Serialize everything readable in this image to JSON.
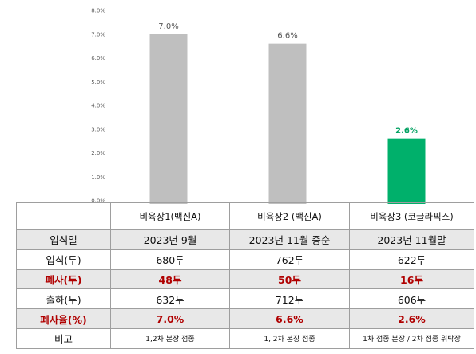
{
  "chart_data": {
    "type": "bar",
    "categories": [
      "비육장1(백신A)",
      "비육장2 (백신A)",
      "비육장3 (코글라픽스)"
    ],
    "values": [
      7.0,
      6.6,
      2.6
    ],
    "value_labels": [
      "7.0%",
      "6.6%",
      "2.6%"
    ],
    "bar_colors": [
      "#bfbfbf",
      "#bfbfbf",
      "#00b06b"
    ],
    "value_label_colors": [
      "#595959",
      "#595959",
      "#00a060"
    ],
    "ylim": [
      0,
      8
    ],
    "yticks": [
      0,
      1,
      2,
      3,
      4,
      5,
      6,
      7,
      8
    ],
    "ytick_labels": [
      "0.0%",
      "1.0%",
      "2.0%",
      "3.0%",
      "4.0%",
      "5.0%",
      "6.0%",
      "7.0%",
      "8.0%"
    ],
    "grid": false,
    "title": "",
    "xlabel": "",
    "ylabel": ""
  },
  "table": {
    "header": [
      "",
      "비육장1(백신A)",
      "비육장2 (백신A)",
      "비육장3 (코글라픽스)"
    ],
    "rows": [
      {
        "label": "입식일",
        "cells": [
          "2023년 9월",
          "2023년 11월 중순",
          "2023년 11월말"
        ],
        "style": "shade"
      },
      {
        "label": "입식(두)",
        "cells": [
          "680두",
          "762두",
          "622두"
        ],
        "style": "plain"
      },
      {
        "label": "폐사(두)",
        "cells": [
          "48두",
          "50두",
          "16두"
        ],
        "style": "shade red"
      },
      {
        "label": "출하(두)",
        "cells": [
          "632두",
          "712두",
          "606두"
        ],
        "style": "plain"
      },
      {
        "label": "폐사율(%)",
        "cells": [
          "7.0%",
          "6.6%",
          "2.6%"
        ],
        "style": "shade red"
      },
      {
        "label": "비고",
        "cells": [
          "1,2차 본장 접종",
          "1, 2차 본장 접종",
          "1차 접종 본장 / 2차 접종 위탁장"
        ],
        "style": "note"
      }
    ]
  }
}
